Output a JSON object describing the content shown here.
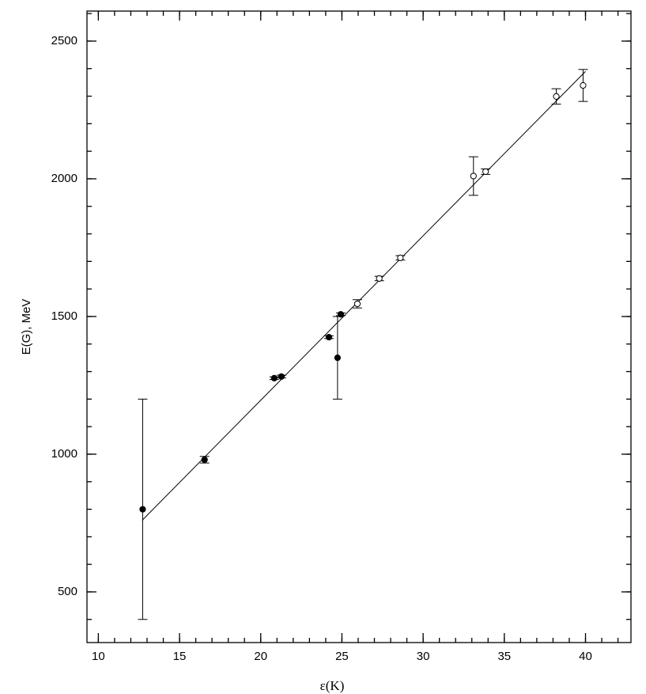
{
  "chart_data": {
    "type": "scatter",
    "x_label": "ε(K)",
    "y_label": "E(G), MeV",
    "xlim": [
      9.3,
      42.8
    ],
    "ylim": [
      316,
      2609
    ],
    "xticks": [
      10,
      15,
      20,
      25,
      30,
      35,
      40
    ],
    "yticks": [
      500,
      1000,
      1500,
      2000,
      2500
    ],
    "xminor_step": 1,
    "yminor_step": 100,
    "color": "#000000",
    "series": [
      {
        "marker": "filled",
        "x": [
          12.73,
          16.54,
          20.83,
          21.27,
          24.2,
          24.73,
          24.93
        ],
        "y": [
          800,
          980,
          1276,
          1282,
          1425,
          1350,
          1508
        ],
        "yerr": [
          400,
          12,
          5,
          5,
          5,
          150,
          5
        ]
      },
      {
        "marker": "open",
        "x": [
          25.95,
          27.3,
          28.6,
          33.1,
          33.85,
          38.2,
          39.85
        ],
        "y": [
          1546,
          1638,
          1713,
          2010,
          2026,
          2299,
          2339
        ],
        "yerr": [
          15,
          8,
          8,
          70,
          10,
          28,
          58
        ]
      }
    ],
    "fit": {
      "x": [
        12.7,
        40
      ],
      "y": [
        760,
        2390
      ]
    }
  }
}
